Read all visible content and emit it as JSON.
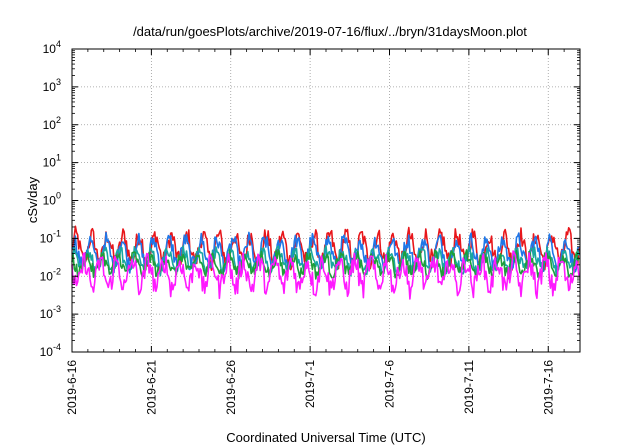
{
  "chart_data": {
    "type": "line",
    "title": "/data/run/goesPlots/archive/2019-07-16/flux/../bryn/31daysMoon.plot",
    "xlabel": "Coordinated Universal Time (UTC)",
    "ylabel": "cSv/day",
    "yscale": "log",
    "ylim": [
      0.0001,
      10000
    ],
    "xlim": [
      "2019-06-16",
      "2019-07-18"
    ],
    "grid": true,
    "legend": "none",
    "y_ticks": [
      {
        "mantissa": "10",
        "exp": "-4",
        "value": 0.0001
      },
      {
        "mantissa": "10",
        "exp": "-3",
        "value": 0.001
      },
      {
        "mantissa": "10",
        "exp": "-2",
        "value": 0.01
      },
      {
        "mantissa": "10",
        "exp": "-1",
        "value": 0.1
      },
      {
        "mantissa": "10",
        "exp": "0",
        "value": 1
      },
      {
        "mantissa": "10",
        "exp": "1",
        "value": 10
      },
      {
        "mantissa": "10",
        "exp": "2",
        "value": 100
      },
      {
        "mantissa": "10",
        "exp": "3",
        "value": 1000
      },
      {
        "mantissa": "10",
        "exp": "4",
        "value": 10000
      }
    ],
    "x_ticks": [
      {
        "label": "2019-6-16",
        "date": "2019-06-16"
      },
      {
        "label": "2019-6-21",
        "date": "2019-06-21"
      },
      {
        "label": "2019-6-26",
        "date": "2019-06-26"
      },
      {
        "label": "2019-7-1",
        "date": "2019-07-01"
      },
      {
        "label": "2019-7-6",
        "date": "2019-07-06"
      },
      {
        "label": "2019-7-11",
        "date": "2019-07-11"
      },
      {
        "label": "2019-7-16",
        "date": "2019-07-16"
      }
    ],
    "x_minor_per_major": 5,
    "series": [
      {
        "color": "#e8161b",
        "typical": 0.06,
        "daily_peak": 0.12,
        "daily_trough": 0.025,
        "noise": 0.25
      },
      {
        "color": "#1f77e8",
        "typical": 0.04,
        "daily_peak": 0.09,
        "daily_trough": 0.02,
        "noise": 0.22
      },
      {
        "color": "#19a7a0",
        "typical": 0.025,
        "daily_peak": 0.045,
        "daily_trough": 0.015,
        "noise": 0.18
      },
      {
        "color": "#1e9e3a",
        "typical": 0.02,
        "daily_peak": 0.035,
        "daily_trough": 0.012,
        "noise": 0.18
      },
      {
        "color": "#ff19ff",
        "typical": 0.012,
        "daily_peak": 0.025,
        "daily_trough": 0.005,
        "noise": 0.3
      }
    ]
  }
}
